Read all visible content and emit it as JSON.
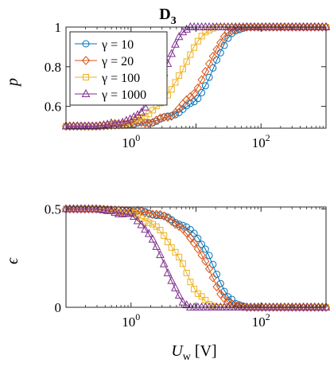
{
  "title": "D",
  "title_sub": "3",
  "xlabel_main": "U",
  "xlabel_sub": "w",
  "xlabel_unit": "[V]",
  "colors": {
    "g10": "#0072BD",
    "g20": "#D95319",
    "g100": "#EDB120",
    "g1000": "#7E2F8E"
  },
  "chart_data": [
    {
      "type": "line",
      "ylabel": "p",
      "xscale": "log",
      "xlim": [
        0.1,
        1000
      ],
      "ylim": [
        0.49,
        1.0
      ],
      "xticks": [
        1,
        100
      ],
      "xticklabels": [
        "10",
        "10"
      ],
      "xtick_exponents": [
        "0",
        "2"
      ],
      "yticks": [
        0.6,
        0.8,
        1.0
      ],
      "yticklabels": [
        "0.6",
        "0.8",
        "1"
      ],
      "grid": false,
      "legend": "top-left",
      "series": [
        {
          "name": "γ = 10",
          "marker": "circle",
          "color": "#0072BD",
          "x": [
            0.1,
            0.3,
            1,
            2,
            4,
            6,
            10,
            15,
            20,
            25,
            30,
            40,
            60,
            100,
            300,
            1000
          ],
          "values": [
            0.5,
            0.5,
            0.51,
            0.52,
            0.55,
            0.58,
            0.63,
            0.72,
            0.82,
            0.89,
            0.94,
            0.98,
            1.0,
            1.0,
            1.0,
            1.0
          ]
        },
        {
          "name": "γ = 20",
          "marker": "diamond",
          "color": "#D95319",
          "x": [
            0.1,
            0.3,
            1,
            2,
            4,
            6,
            10,
            15,
            20,
            25,
            30,
            40,
            60,
            100,
            300,
            1000
          ],
          "values": [
            0.5,
            0.5,
            0.51,
            0.52,
            0.55,
            0.6,
            0.68,
            0.79,
            0.88,
            0.94,
            0.97,
            0.99,
            1.0,
            1.0,
            1.0,
            1.0
          ]
        },
        {
          "name": "γ = 100",
          "marker": "square",
          "color": "#EDB120",
          "x": [
            0.1,
            0.3,
            1,
            2,
            3,
            4,
            6,
            8,
            10,
            15,
            20,
            30,
            100,
            300,
            1000
          ],
          "values": [
            0.5,
            0.5,
            0.52,
            0.57,
            0.62,
            0.68,
            0.77,
            0.86,
            0.92,
            0.98,
            1.0,
            1.0,
            1.0,
            1.0,
            1.0
          ]
        },
        {
          "name": "γ = 1000",
          "marker": "triangle",
          "color": "#7E2F8E",
          "x": [
            0.1,
            0.3,
            1,
            1.5,
            2,
            3,
            4,
            5,
            6,
            8,
            10,
            20,
            100,
            1000
          ],
          "values": [
            0.5,
            0.5,
            0.53,
            0.58,
            0.64,
            0.75,
            0.85,
            0.92,
            0.97,
            1.0,
            1.0,
            1.0,
            1.0,
            1.0
          ]
        }
      ]
    },
    {
      "type": "line",
      "ylabel": "ϵ",
      "xscale": "log",
      "xlim": [
        0.1,
        1000
      ],
      "ylim": [
        0,
        0.51
      ],
      "xticks": [
        1,
        100
      ],
      "xticklabels": [
        "10",
        "10"
      ],
      "xtick_exponents": [
        "0",
        "2"
      ],
      "yticks": [
        0,
        0.5
      ],
      "yticklabels": [
        "0",
        "0.5"
      ],
      "grid": false,
      "series": [
        {
          "name": "γ = 10",
          "marker": "circle",
          "color": "#0072BD",
          "x": [
            0.1,
            0.3,
            1,
            2,
            4,
            6,
            10,
            15,
            20,
            25,
            30,
            40,
            60,
            100,
            300,
            1000
          ],
          "values": [
            0.5,
            0.5,
            0.49,
            0.48,
            0.45,
            0.42,
            0.37,
            0.28,
            0.18,
            0.11,
            0.06,
            0.02,
            0.0,
            0.0,
            0.0,
            0.0
          ]
        },
        {
          "name": "γ = 20",
          "marker": "diamond",
          "color": "#D95319",
          "x": [
            0.1,
            0.3,
            1,
            2,
            4,
            6,
            10,
            15,
            20,
            25,
            30,
            40,
            60,
            100,
            300,
            1000
          ],
          "values": [
            0.5,
            0.5,
            0.49,
            0.48,
            0.45,
            0.4,
            0.32,
            0.21,
            0.12,
            0.06,
            0.03,
            0.01,
            0.0,
            0.0,
            0.0,
            0.0
          ]
        },
        {
          "name": "γ = 100",
          "marker": "square",
          "color": "#EDB120",
          "x": [
            0.1,
            0.3,
            1,
            2,
            3,
            4,
            6,
            8,
            10,
            15,
            20,
            30,
            100,
            300,
            1000
          ],
          "values": [
            0.5,
            0.5,
            0.48,
            0.43,
            0.38,
            0.32,
            0.23,
            0.14,
            0.08,
            0.02,
            0.0,
            0.0,
            0.0,
            0.0,
            0.0
          ]
        },
        {
          "name": "γ = 1000",
          "marker": "triangle",
          "color": "#7E2F8E",
          "x": [
            0.1,
            0.3,
            1,
            1.5,
            2,
            3,
            4,
            5,
            6,
            8,
            10,
            20,
            100,
            1000
          ],
          "values": [
            0.5,
            0.5,
            0.47,
            0.42,
            0.36,
            0.25,
            0.15,
            0.08,
            0.03,
            0.0,
            0.0,
            0.0,
            0.0,
            0.0
          ]
        }
      ]
    }
  ]
}
